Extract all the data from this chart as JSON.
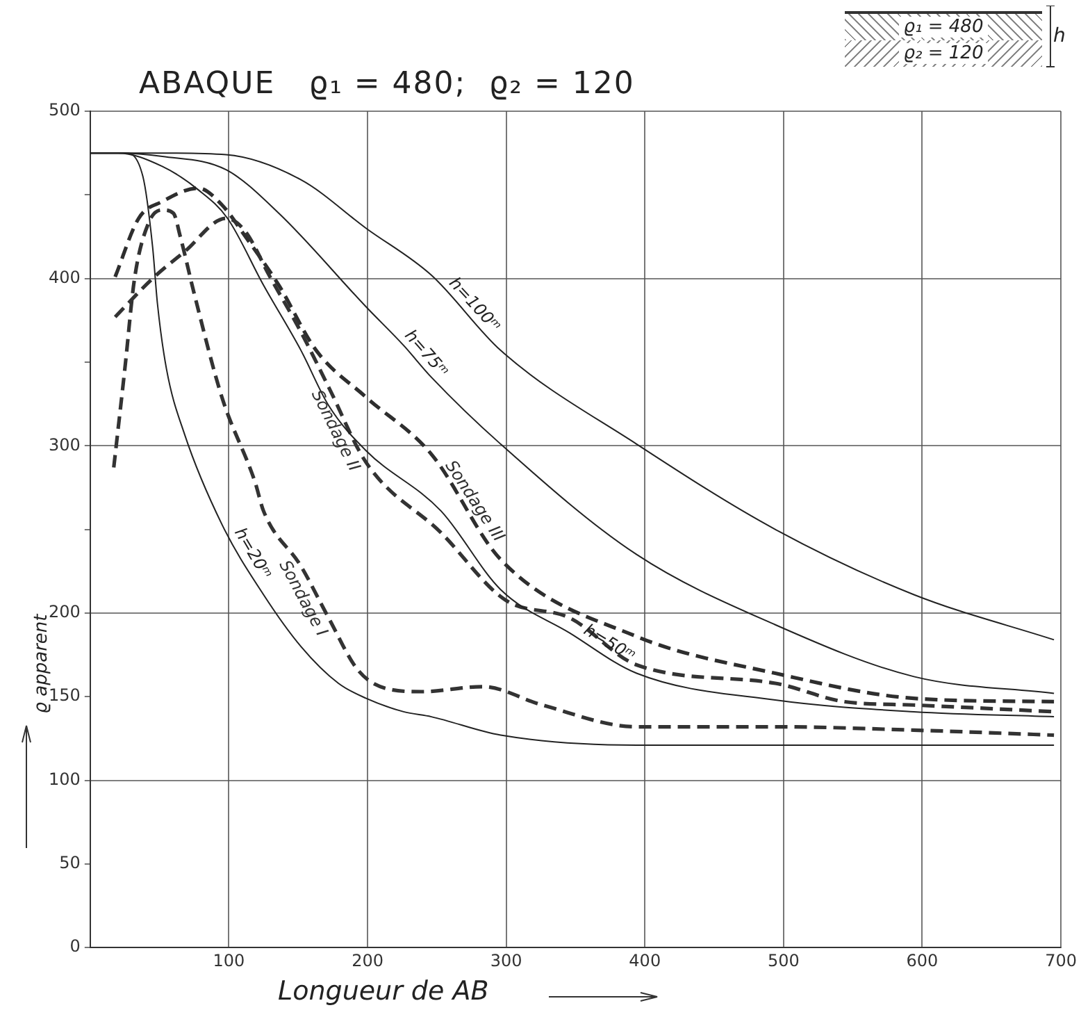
{
  "chart_data": {
    "type": "line",
    "title": "ABAQUE   ϱ₁ = 480;  ϱ₂ = 120",
    "xlabel": "Longueur de AB",
    "ylabel": "ϱ apparent",
    "annotations": [
      "ϱ₁ = 480",
      "ϱ₂ = 120",
      "h"
    ],
    "xlim": [
      0,
      700
    ],
    "xticks": [
      {
        "value": 0,
        "label": null
      },
      100,
      200,
      300,
      400,
      500,
      600,
      700
    ],
    "ylim": [
      0,
      500
    ],
    "yticks": [
      0,
      50,
      100,
      150,
      200,
      {
        "value": 250,
        "label": null
      },
      300,
      {
        "value": 350,
        "label": null
      },
      400,
      {
        "value": 450,
        "label": null
      },
      500
    ],
    "grid": true,
    "legend": false,
    "marker": "none",
    "series": [
      {
        "name": "h=20ᵐ",
        "color": "#222222",
        "line_style": "solid",
        "x": [
          0,
          25,
          38,
          45,
          48.5,
          55,
          68,
          95,
          125,
          152,
          179,
          199,
          226,
          246,
          296,
          394,
          500,
          600,
          695
        ],
        "values": [
          475,
          475,
          461,
          419,
          385,
          346,
          307,
          253,
          211,
          180,
          158,
          149,
          141,
          138,
          127,
          121,
          121,
          121,
          121
        ]
      },
      {
        "name": "h=50ᵐ",
        "color": "#222222",
        "line_style": "solid",
        "x": [
          0,
          20,
          52,
          78,
          99,
          125,
          152,
          172,
          199,
          253,
          296,
          346,
          394,
          494,
          594,
          695
        ],
        "values": [
          475,
          475,
          467,
          453,
          436,
          396,
          357,
          324,
          297,
          261,
          214,
          188,
          164,
          148,
          141,
          138
        ]
      },
      {
        "name": "h=75ᵐ",
        "color": "#222222",
        "line_style": "solid",
        "x": [
          0,
          20,
          52,
          98,
          136,
          199,
          226,
          246,
          296,
          394,
          494,
          594,
          695
        ],
        "values": [
          475,
          475,
          473,
          465,
          439,
          383,
          360,
          341,
          301,
          235,
          193,
          162,
          152
        ]
      },
      {
        "name": "h=100ᵐ",
        "color": "#222222",
        "line_style": "solid",
        "x": [
          0,
          52,
          98,
          152,
          199,
          246,
          296,
          394,
          494,
          594,
          695
        ],
        "values": [
          475,
          475,
          474,
          459,
          430,
          402,
          357,
          301,
          250,
          211,
          184
        ]
      },
      {
        "name": "Sondage I",
        "color": "#333333",
        "line_style": "dashed",
        "x": [
          17,
          25,
          32,
          42,
          52,
          60,
          65,
          75,
          95,
          119,
          125,
          152,
          172,
          193,
          213,
          239,
          283,
          326,
          394,
          494,
          594,
          695
        ],
        "values": [
          287,
          346,
          400,
          433,
          441,
          439,
          425,
          391,
          329,
          278,
          261,
          228,
          197,
          166,
          155,
          153,
          156,
          145,
          132,
          132,
          130,
          127
        ]
      },
      {
        "name": "Sondage II",
        "color": "#333333",
        "line_style": "dashed",
        "x": [
          18,
          45,
          68,
          98,
          112,
          129,
          152,
          172,
          199,
          253,
          299,
          346,
          394,
          494,
          544,
          594,
          695
        ],
        "values": [
          377,
          400,
          416,
          436,
          428,
          402,
          368,
          335,
          290,
          248,
          208,
          197,
          169,
          158,
          147,
          145,
          141
        ]
      },
      {
        "name": "Sondage III",
        "color": "#2e2e2e",
        "line_style": "dashed",
        "x": [
          18,
          35,
          52,
          78,
          95,
          112,
          136,
          163,
          199,
          246,
          296,
          394,
          494,
          594,
          695
        ],
        "values": [
          401,
          436,
          446,
          454,
          444,
          425,
          396,
          357,
          329,
          295,
          232,
          186,
          164,
          149,
          147
        ]
      }
    ]
  }
}
